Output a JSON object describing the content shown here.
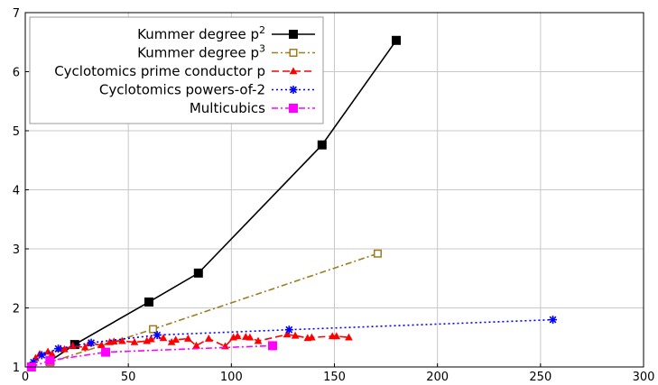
{
  "chart_data": {
    "type": "line",
    "title": "",
    "xlabel": "",
    "ylabel": "",
    "xlim": [
      0,
      300
    ],
    "ylim": [
      1,
      7
    ],
    "xticks": [
      0,
      50,
      100,
      150,
      200,
      250,
      300
    ],
    "yticks": [
      1,
      2,
      3,
      4,
      5,
      6,
      7
    ],
    "grid": true,
    "legend_position": "top-left",
    "series": [
      {
        "name": "Kummer degree p",
        "name_superscript": "2",
        "color": "#000000",
        "dash": "solid",
        "marker": "filled-square",
        "x": [
          12,
          24,
          60,
          84,
          144,
          180
        ],
        "y": [
          1.1,
          1.38,
          2.1,
          2.59,
          4.76,
          6.53
        ]
      },
      {
        "name": "Kummer degree p",
        "name_superscript": "3",
        "color": "#a07c1e",
        "dash": "dashdot",
        "marker": "open-square",
        "x": [
          12,
          62,
          171
        ],
        "y": [
          1.08,
          1.64,
          2.92
        ]
      },
      {
        "name": "Cyclotomics prime conductor p",
        "color": "#ff0000",
        "dash": "dashed",
        "marker": "triangle",
        "x": [
          3,
          5,
          7,
          11,
          13,
          17,
          19,
          23,
          29,
          31,
          37,
          41,
          43,
          47,
          53,
          59,
          61,
          67,
          71,
          73,
          79,
          83,
          89,
          97,
          101,
          103,
          107,
          109,
          113,
          127,
          131,
          137,
          139,
          149,
          151,
          157
        ],
        "y": [
          1.0,
          1.15,
          1.22,
          1.26,
          1.22,
          1.31,
          1.3,
          1.36,
          1.33,
          1.4,
          1.37,
          1.42,
          1.43,
          1.44,
          1.42,
          1.44,
          1.47,
          1.49,
          1.42,
          1.46,
          1.48,
          1.36,
          1.48,
          1.35,
          1.5,
          1.52,
          1.51,
          1.5,
          1.44,
          1.55,
          1.53,
          1.49,
          1.5,
          1.52,
          1.52,
          1.5
        ]
      },
      {
        "name": "Cyclotomics powers-of-2",
        "color": "#0000ff",
        "dash": "dotted",
        "marker": "star",
        "x": [
          4,
          8,
          16,
          32,
          64,
          128,
          256
        ],
        "y": [
          1.08,
          1.2,
          1.31,
          1.41,
          1.54,
          1.63,
          1.8
        ]
      },
      {
        "name": "Multicubics",
        "color": "#ff00ff",
        "dash": "dashdot",
        "marker": "filled-square",
        "x": [
          3,
          12,
          39,
          120
        ],
        "y": [
          1.0,
          1.11,
          1.25,
          1.36
        ]
      }
    ]
  }
}
